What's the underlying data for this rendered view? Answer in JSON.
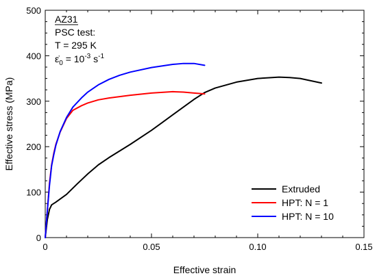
{
  "chart_data": {
    "type": "line",
    "xlabel": "Effective strain",
    "ylabel": "Effective stress (MPa)",
    "xlim": [
      0,
      0.15
    ],
    "ylim": [
      0,
      500
    ],
    "x_ticks": [
      0,
      0.05,
      0.1,
      0.15
    ],
    "x_tick_labels": [
      "0",
      "0.05",
      "0.10",
      "0.15"
    ],
    "y_ticks": [
      0,
      100,
      200,
      300,
      400,
      500
    ],
    "y_tick_labels": [
      "0",
      "100",
      "200",
      "300",
      "400",
      "500"
    ],
    "grid": false,
    "legend_position": "bottom-right",
    "annotation": {
      "material": "AZ31",
      "test": "PSC test:",
      "temperature": "T = 295 K",
      "rate_prefix": "ε̇",
      "rate_sub": "0",
      "rate_eq": " = 10",
      "rate_exp": "-3",
      "rate_unit": " s",
      "rate_unit_exp": "-1"
    },
    "series": [
      {
        "name": "Extruded",
        "color": "#000000",
        "points": [
          [
            0,
            0
          ],
          [
            0.001,
            40
          ],
          [
            0.002,
            62
          ],
          [
            0.003,
            72
          ],
          [
            0.005,
            78
          ],
          [
            0.01,
            95
          ],
          [
            0.015,
            118
          ],
          [
            0.02,
            140
          ],
          [
            0.025,
            160
          ],
          [
            0.03,
            176
          ],
          [
            0.04,
            205
          ],
          [
            0.05,
            236
          ],
          [
            0.055,
            253
          ],
          [
            0.06,
            270
          ],
          [
            0.065,
            287
          ],
          [
            0.07,
            304
          ],
          [
            0.075,
            319
          ],
          [
            0.08,
            329
          ],
          [
            0.09,
            342
          ],
          [
            0.1,
            350
          ],
          [
            0.11,
            353
          ],
          [
            0.115,
            352
          ],
          [
            0.12,
            350
          ],
          [
            0.13,
            340
          ]
        ]
      },
      {
        "name": "HPT: N = 1",
        "color": "#ff0000",
        "points": [
          [
            0,
            0
          ],
          [
            0.001,
            60
          ],
          [
            0.002,
            120
          ],
          [
            0.003,
            160
          ],
          [
            0.004,
            185
          ],
          [
            0.005,
            205
          ],
          [
            0.007,
            232
          ],
          [
            0.01,
            262
          ],
          [
            0.013,
            280
          ],
          [
            0.017,
            290
          ],
          [
            0.02,
            296
          ],
          [
            0.025,
            303
          ],
          [
            0.03,
            307
          ],
          [
            0.04,
            313
          ],
          [
            0.05,
            318
          ],
          [
            0.06,
            321
          ],
          [
            0.065,
            320
          ],
          [
            0.07,
            318
          ],
          [
            0.075,
            316
          ]
        ]
      },
      {
        "name": "HPT: N = 10",
        "color": "#0000ff",
        "points": [
          [
            0,
            0
          ],
          [
            0.001,
            60
          ],
          [
            0.002,
            115
          ],
          [
            0.003,
            158
          ],
          [
            0.004,
            182
          ],
          [
            0.005,
            203
          ],
          [
            0.007,
            233
          ],
          [
            0.01,
            264
          ],
          [
            0.013,
            287
          ],
          [
            0.017,
            307
          ],
          [
            0.02,
            320
          ],
          [
            0.025,
            336
          ],
          [
            0.03,
            348
          ],
          [
            0.035,
            357
          ],
          [
            0.04,
            364
          ],
          [
            0.05,
            374
          ],
          [
            0.06,
            381
          ],
          [
            0.065,
            383
          ],
          [
            0.07,
            383
          ],
          [
            0.075,
            379
          ]
        ]
      }
    ]
  }
}
